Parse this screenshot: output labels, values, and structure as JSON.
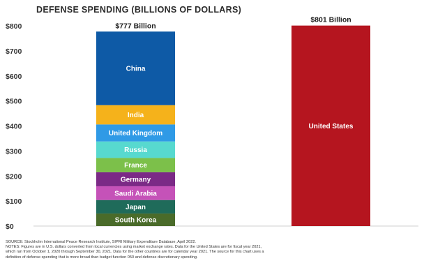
{
  "chart_data": {
    "type": "bar",
    "stacked": true,
    "title": "DEFENSE SPENDING (BILLIONS OF DOLLARS)",
    "ylim": [
      0,
      800
    ],
    "yticks": [
      0,
      100,
      200,
      300,
      400,
      500,
      600,
      700,
      800
    ],
    "ytick_labels": [
      "$0",
      "$100",
      "$200",
      "$300",
      "$400",
      "$500",
      "$600",
      "$700",
      "$800"
    ],
    "grid": false,
    "bars": [
      {
        "total_label": "$777 Billion",
        "segments": [
          {
            "name": "South Korea",
            "value": 50,
            "color": "#4a6b2a"
          },
          {
            "name": "Japan",
            "value": 54,
            "color": "#1f6b5a"
          },
          {
            "name": "Saudi Arabia",
            "value": 55,
            "color": "#c552b8"
          },
          {
            "name": "Germany",
            "value": 56,
            "color": "#7b2a86"
          },
          {
            "name": "France",
            "value": 57,
            "color": "#7cc04a"
          },
          {
            "name": "Russia",
            "value": 66,
            "color": "#57d9cf"
          },
          {
            "name": "United Kingdom",
            "value": 68,
            "color": "#2f9ae6"
          },
          {
            "name": "India",
            "value": 77,
            "color": "#f5b21b"
          },
          {
            "name": "China",
            "value": 294,
            "color": "#0e5aa6"
          }
        ]
      },
      {
        "total_label": "$801 Billion",
        "segments": [
          {
            "name": "United States",
            "value": 801,
            "color": "#b5151f"
          }
        ]
      }
    ]
  },
  "notes": {
    "source": "SOURCE: Stockholm International Peace Research Institute, SIPRI Military Expenditure Database, April 2022.",
    "notes_line1": "NOTES: Figures are in U.S. dollars converted from local currencies using market exchange rates. Data for the United States are for fiscal year 2021,",
    "notes_line2": "which ran from October 1, 2020 through September 30, 2021. Data for the other countries are for calendar year 2021. The source for this chart uses a",
    "notes_line3": "definition of defense spending that is more broad than budget function 050 and defense discretionary spending."
  }
}
